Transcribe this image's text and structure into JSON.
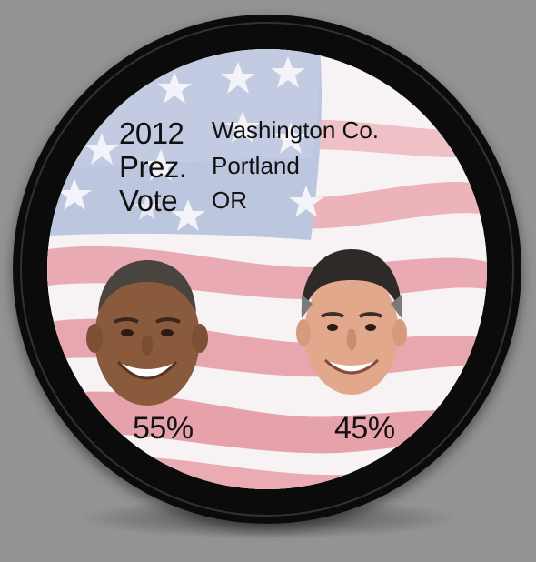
{
  "title": {
    "line1": "2012",
    "line2": "Prez.",
    "line3": "Vote"
  },
  "location": {
    "county": "Washington Co.",
    "city": "Portland",
    "state": "OR"
  },
  "candidates": [
    {
      "percent": "55%",
      "value": 55,
      "icon": "candidate-1-face-icon"
    },
    {
      "percent": "45%",
      "value": 45,
      "icon": "candidate-2-face-icon"
    }
  ],
  "colors": {
    "background": "#939393",
    "bezel": "#0b0b0b",
    "flag_red": "#e9a9b1",
    "flag_white": "#f7f2f3",
    "flag_blue": "#b8c4dc",
    "text": "#111111"
  }
}
